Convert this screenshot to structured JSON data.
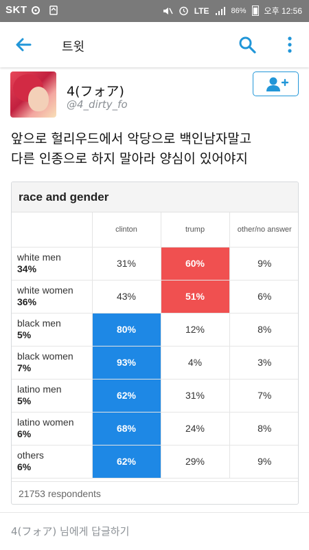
{
  "status_bar": {
    "carrier": "SKT",
    "network": "LTE",
    "battery": "86%",
    "time": "오후 12:56"
  },
  "app_bar": {
    "title": "트윗"
  },
  "tweet": {
    "display_name": "4(フォア)",
    "handle": "@4_dirty_fo",
    "text_line1": "앞으로 헐리우드에서 악당으로 백인남자말고",
    "text_line2": "다른 인종으로 하지 말아라 양심이 있어야지"
  },
  "card": {
    "title": "race and gender",
    "columns": [
      "clinton",
      "trump",
      "other/no answer"
    ],
    "rows": [
      {
        "group": "white men",
        "pct": "34%",
        "clinton": "31%",
        "trump": "60%",
        "other": "9%",
        "hi": "trump"
      },
      {
        "group": "white women",
        "pct": "36%",
        "clinton": "43%",
        "trump": "51%",
        "other": "6%",
        "hi": "trump"
      },
      {
        "group": "black men",
        "pct": "5%",
        "clinton": "80%",
        "trump": "12%",
        "other": "8%",
        "hi": "clinton"
      },
      {
        "group": "black women",
        "pct": "7%",
        "clinton": "93%",
        "trump": "4%",
        "other": "3%",
        "hi": "clinton"
      },
      {
        "group": "latino men",
        "pct": "5%",
        "clinton": "62%",
        "trump": "31%",
        "other": "7%",
        "hi": "clinton"
      },
      {
        "group": "latino women",
        "pct": "6%",
        "clinton": "68%",
        "trump": "24%",
        "other": "8%",
        "hi": "clinton"
      },
      {
        "group": "others",
        "pct": "6%",
        "clinton": "62%",
        "trump": "29%",
        "other": "9%",
        "hi": "clinton"
      }
    ],
    "respondents": "21753 respondents"
  },
  "reply_placeholder": "4(フォア) 님에게 답글하기",
  "colors": {
    "accent": "#2196d8",
    "clinton": "#1e88e5",
    "trump": "#f05050",
    "status_bar": "#7a7a7a"
  },
  "icons": {
    "back": "arrow-left-icon",
    "search": "search-icon",
    "more": "more-vertical-icon",
    "follow": "add-user-icon"
  }
}
